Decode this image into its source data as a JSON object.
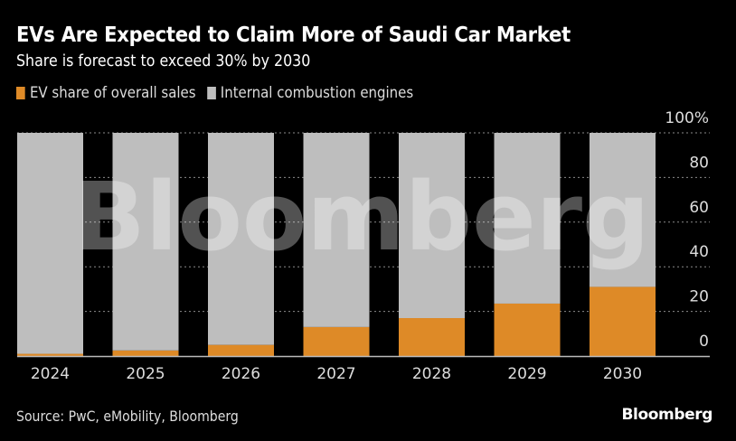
{
  "header": {
    "title": "EVs Are Expected to Claim More of Saudi Car Market",
    "subtitle": "Share is forecast to exceed 30% by 2030"
  },
  "footer": {
    "source": "Source: PwC, eMobility, Bloomberg",
    "brand": "Bloomberg"
  },
  "watermark": "Bloomberg",
  "colors": {
    "ev": "#DE8A27",
    "ice": "#BEBEBE",
    "background": "#000000",
    "grid": "#888888"
  },
  "chart_data": {
    "type": "bar",
    "stacked": true,
    "title": "EVs Are Expected to Claim More of Saudi Car Market",
    "subtitle": "Share is forecast to exceed 30% by 2030",
    "xlabel": "",
    "ylabel": "",
    "categories": [
      "2024",
      "2025",
      "2026",
      "2027",
      "2028",
      "2029",
      "2030"
    ],
    "series": [
      {
        "name": "EV share of overall sales",
        "color": "#DE8A27",
        "values": [
          1,
          2.5,
          5,
          13,
          17,
          23.5,
          31
        ]
      },
      {
        "name": "Internal combustion engines",
        "color": "#BEBEBE",
        "values": [
          99,
          97.5,
          95,
          87,
          83,
          76.5,
          69
        ]
      }
    ],
    "ylim": [
      0,
      100
    ],
    "yticks": [
      0,
      20,
      40,
      60,
      80,
      100
    ],
    "ytick_labels": [
      "0",
      "20",
      "40",
      "60",
      "80",
      "100%"
    ],
    "y_axis_side": "right",
    "grid": true,
    "legend_position": "top-left"
  }
}
